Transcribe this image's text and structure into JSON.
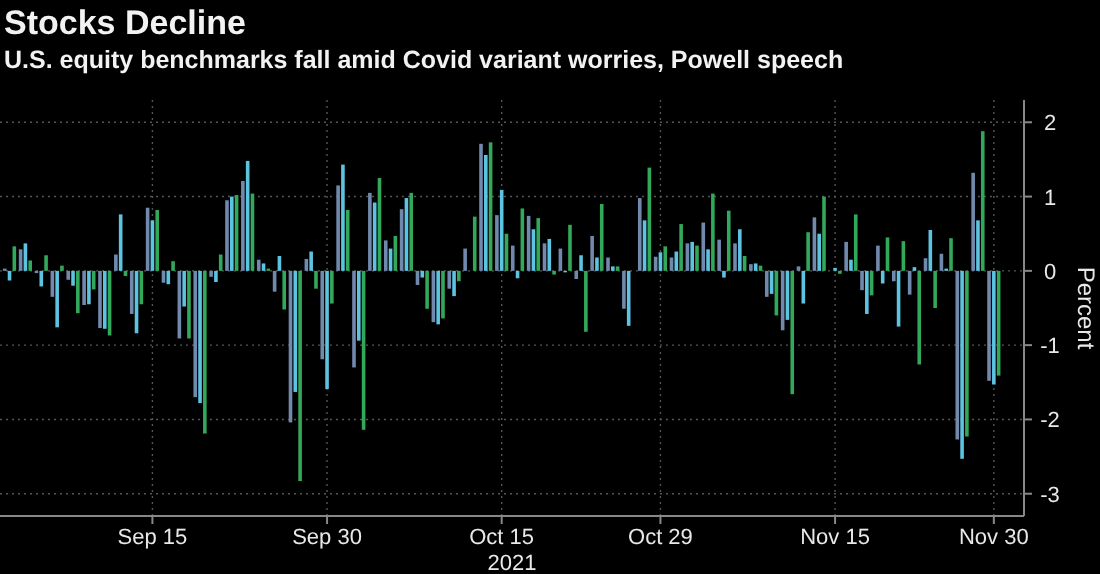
{
  "chart_data": {
    "type": "bar",
    "title": "Stocks Decline",
    "subtitle": "U.S. equity benchmarks fall amid Covid variant worries, Powell speech",
    "xlabel": "2021",
    "ylabel": "Percent",
    "categories": [
      null,
      null,
      null,
      null,
      null,
      null,
      null,
      null,
      null,
      "Sep 15",
      null,
      null,
      null,
      null,
      null,
      null,
      null,
      null,
      null,
      null,
      "Sep 30",
      null,
      null,
      null,
      null,
      null,
      null,
      null,
      null,
      null,
      null,
      "Oct 15",
      null,
      null,
      null,
      null,
      null,
      null,
      null,
      null,
      null,
      "Oct 29",
      null,
      null,
      null,
      null,
      null,
      null,
      null,
      null,
      null,
      null,
      "Nov 15",
      null,
      null,
      null,
      null,
      null,
      null,
      null,
      null,
      null,
      "Nov 30"
    ],
    "series": [
      {
        "color": "#7089ad",
        "values": [
          0.03,
          0.29,
          -0.03,
          -0.35,
          -0.12,
          -0.46,
          -0.77,
          0.22,
          -0.58,
          0.85,
          -0.16,
          -0.91,
          -1.7,
          -0.08,
          0.95,
          1.21,
          0.15,
          -0.28,
          -2.04,
          0.16,
          -1.19,
          1.15,
          -1.3,
          1.05,
          0.41,
          0.83,
          -0.19,
          -0.69,
          -0.24,
          0.3,
          1.71,
          0.75,
          0.34,
          0.74,
          0.37,
          0.3,
          -0.11,
          0.47,
          0.18,
          -0.51,
          0.98,
          0.19,
          0.18,
          0.37,
          0.65,
          0.42,
          0.37,
          0.09,
          -0.35,
          -0.8,
          0.06,
          0.72,
          0,
          0.39,
          -0.26,
          0.34,
          -0.14,
          -0.32,
          0.17,
          0.23,
          -2.27,
          1.32,
          -1.48
        ]
      },
      {
        "color": "#5cc3e0",
        "values": [
          -0.13,
          0.37,
          -0.21,
          -0.76,
          -0.2,
          -0.45,
          -0.78,
          0.76,
          -0.84,
          0.68,
          -0.18,
          -0.48,
          -1.78,
          -0.15,
          1,
          1.48,
          0.1,
          0.2,
          -1.63,
          0.26,
          -1.59,
          1.43,
          -0.94,
          0.92,
          0.3,
          0.98,
          -0.09,
          -0.72,
          -0.34,
          0,
          1.56,
          1.09,
          -0.1,
          0.56,
          0.43,
          -0.02,
          0.21,
          0.18,
          0.06,
          -0.74,
          0.68,
          0.25,
          0.26,
          0.39,
          0.29,
          -0.09,
          0.56,
          0.1,
          -0.31,
          -0.66,
          -0.44,
          0.5,
          0.04,
          0.15,
          -0.58,
          -0.17,
          -0.75,
          0.05,
          0.55,
          0.03,
          -2.53,
          0.68,
          -1.53
        ]
      },
      {
        "color": "#32a85a",
        "values": [
          0.33,
          0.14,
          0.21,
          0.07,
          -0.57,
          -0.25,
          -0.87,
          -0.07,
          -0.45,
          0.82,
          0.13,
          -0.91,
          -2.19,
          0.22,
          1.02,
          1.04,
          0.03,
          -0.52,
          -2.83,
          -0.24,
          -0.44,
          0.82,
          -2.14,
          1.25,
          0.47,
          1.05,
          -0.51,
          -0.64,
          -0.14,
          0.73,
          1.73,
          0.5,
          0.84,
          0.71,
          -0.05,
          0.62,
          -0.82,
          0.9,
          0.06,
          0,
          1.39,
          0.33,
          0.63,
          0.34,
          1.04,
          0.81,
          0.2,
          0.07,
          -0.6,
          -1.66,
          0.52,
          1,
          -0.04,
          0.76,
          -0.33,
          0.45,
          0.4,
          -1.26,
          -0.5,
          0.44,
          -2.23,
          1.88,
          -1.41
        ]
      }
    ],
    "ylim": [
      -3.3,
      2.3
    ],
    "yticks": [
      -3,
      -2,
      -1,
      0,
      1,
      2
    ],
    "grid": true
  }
}
